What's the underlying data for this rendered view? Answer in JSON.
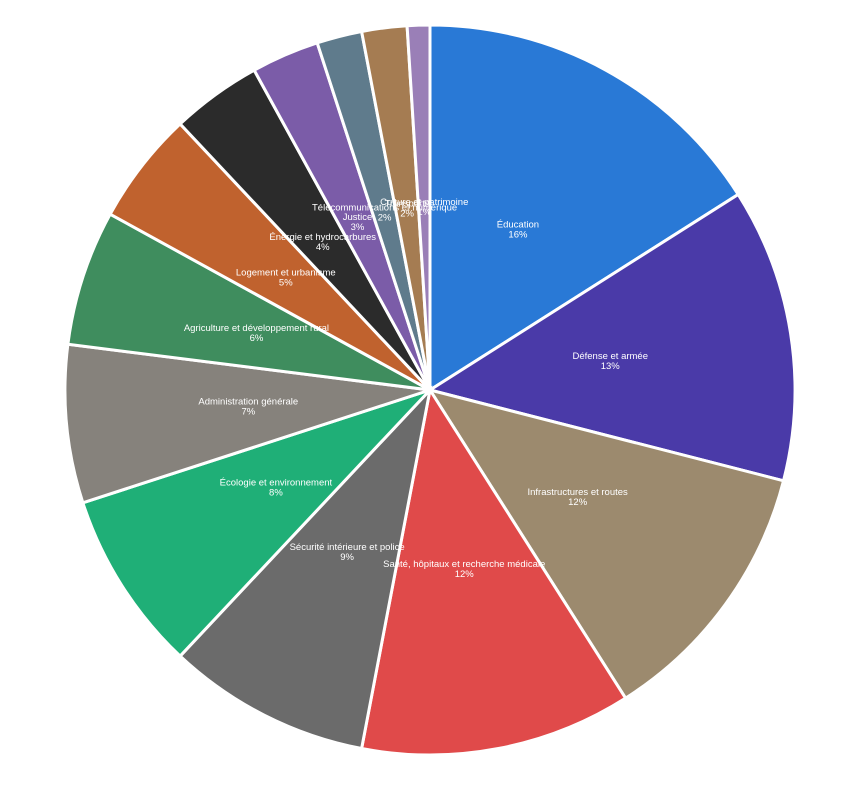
{
  "chart_data": {
    "type": "pie",
    "categories": [
      "Éducation",
      "Défense et armée",
      "Infrastructures et routes",
      "Santé, hôpitaux et recherche médicale",
      "Sécurité intérieure et police",
      "Écologie et environnement",
      "Administration générale",
      "Agriculture et développement rural",
      "Logement et urbanisme",
      "Énergie et hydrocarbures",
      "Justice",
      "Télécommunications et numérique",
      "Transports",
      "Culture et patrimoine"
    ],
    "values": [
      16,
      13,
      12,
      12,
      9,
      8,
      7,
      6,
      5,
      4,
      3,
      2,
      2,
      1
    ],
    "value_labels": [
      "16%",
      "13%",
      "12%",
      "12%",
      "9%",
      "8%",
      "7%",
      "6%",
      "5%",
      "4%",
      "3%",
      "2%",
      "2%",
      "1%"
    ],
    "colors": [
      "#2979d6",
      "#4a3aa8",
      "#9c8a6e",
      "#e04a4a",
      "#6b6b6b",
      "#1faf77",
      "#86827c",
      "#3f8d5e",
      "#c0622e",
      "#2b2b2b",
      "#7b5ca8",
      "#5f7b8c",
      "#a57c52",
      "#9a7fb7"
    ]
  }
}
